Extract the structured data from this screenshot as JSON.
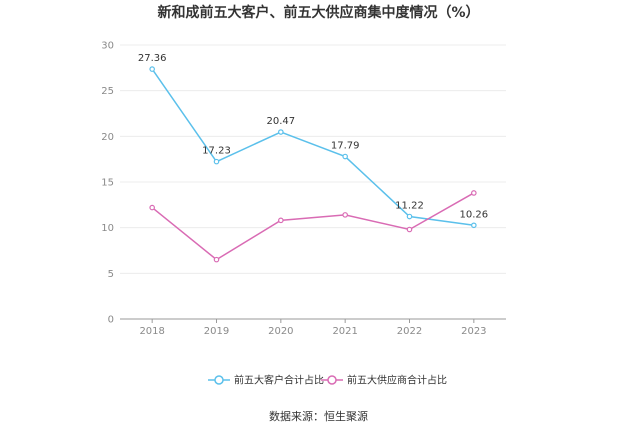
{
  "title": "新和成前五大客户、前五大供应商集中度情况（%）",
  "source": "数据来源：恒生聚源",
  "chart_data": {
    "type": "line",
    "title": "新和成前五大客户、前五大供应商集中度情况（%）",
    "xlabel": "",
    "ylabel": "",
    "categories": [
      "2018",
      "2019",
      "2020",
      "2021",
      "2022",
      "2023"
    ],
    "ylim": [
      0,
      30
    ],
    "yticks": [
      0,
      5,
      10,
      15,
      20,
      25,
      30
    ],
    "grid": true,
    "legend_position": "bottom",
    "series": [
      {
        "name": "前五大客户合计占比",
        "color": "#5bc0eb",
        "values": [
          27.36,
          17.23,
          20.47,
          17.79,
          11.22,
          10.26
        ],
        "labels": [
          "27.36",
          "17.23",
          "20.47",
          "17.79",
          "11.22",
          "10.26"
        ]
      },
      {
        "name": "前五大供应商合计占比",
        "color": "#d96bb4",
        "values": [
          12.2,
          6.5,
          10.8,
          11.4,
          9.8,
          13.8
        ]
      }
    ]
  }
}
